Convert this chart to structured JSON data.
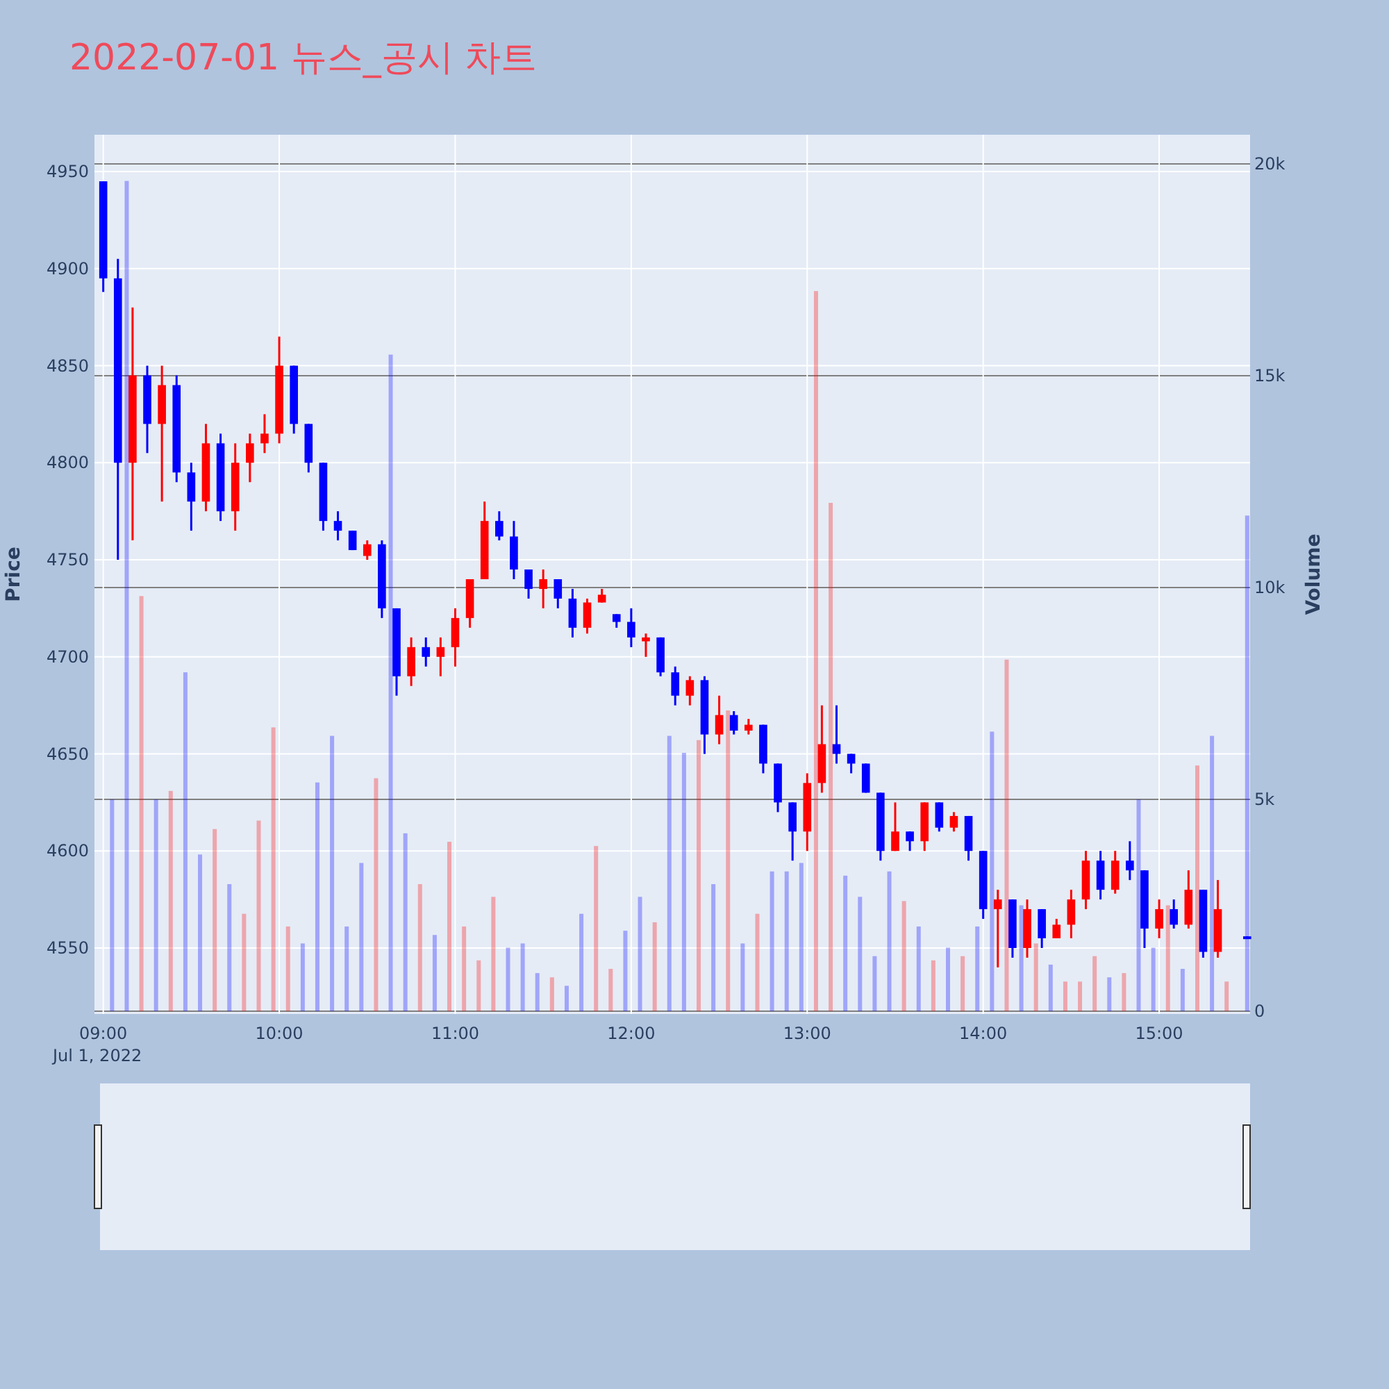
{
  "chart_data": {
    "type": "candlestick",
    "title": "2022-07-01 뉴스_공시 차트",
    "ylabel": "Price",
    "y2label": "Volume",
    "x": [
      "2022-07-01T09:00",
      "2022-07-01T09:05",
      "2022-07-01T09:10",
      "2022-07-01T09:15",
      "2022-07-01T09:20",
      "2022-07-01T09:25",
      "2022-07-01T09:30",
      "2022-07-01T09:35",
      "2022-07-01T09:40",
      "2022-07-01T09:45",
      "2022-07-01T09:50",
      "2022-07-01T09:55",
      "2022-07-01T10:00",
      "2022-07-01T10:05",
      "2022-07-01T10:10",
      "2022-07-01T10:15",
      "2022-07-01T10:20",
      "2022-07-01T10:25",
      "2022-07-01T10:30",
      "2022-07-01T10:35",
      "2022-07-01T10:40",
      "2022-07-01T10:45",
      "2022-07-01T10:50",
      "2022-07-01T10:55",
      "2022-07-01T11:00",
      "2022-07-01T11:05",
      "2022-07-01T11:10",
      "2022-07-01T11:15",
      "2022-07-01T11:20",
      "2022-07-01T11:25",
      "2022-07-01T11:30",
      "2022-07-01T11:35",
      "2022-07-01T11:40",
      "2022-07-01T11:45",
      "2022-07-01T11:50",
      "2022-07-01T11:55",
      "2022-07-01T12:00",
      "2022-07-01T12:05",
      "2022-07-01T12:10",
      "2022-07-01T12:15",
      "2022-07-01T12:20",
      "2022-07-01T12:25",
      "2022-07-01T12:30",
      "2022-07-01T12:35",
      "2022-07-01T12:40",
      "2022-07-01T12:45",
      "2022-07-01T12:50",
      "2022-07-01T12:55",
      "2022-07-01T13:00",
      "2022-07-01T13:05",
      "2022-07-01T13:10",
      "2022-07-01T13:15",
      "2022-07-01T13:20",
      "2022-07-01T13:25",
      "2022-07-01T13:30",
      "2022-07-01T13:35",
      "2022-07-01T13:40",
      "2022-07-01T13:45",
      "2022-07-01T13:50",
      "2022-07-01T13:55",
      "2022-07-01T14:00",
      "2022-07-01T14:05",
      "2022-07-01T14:10",
      "2022-07-01T14:15",
      "2022-07-01T14:20",
      "2022-07-01T14:25",
      "2022-07-01T14:30",
      "2022-07-01T14:35",
      "2022-07-01T14:40",
      "2022-07-01T14:45",
      "2022-07-01T14:50",
      "2022-07-01T14:55",
      "2022-07-01T15:00",
      "2022-07-01T15:05",
      "2022-07-01T15:10",
      "2022-07-01T15:15",
      "2022-07-01T15:20",
      "2022-07-01T15:30"
    ],
    "series": [
      {
        "colors": [
          "#0000ff",
          "#0000ff",
          "#ff0000",
          "#0000ff",
          "#ff0000",
          "#0000ff",
          "#0000ff",
          "#ff0000",
          "#0000ff",
          "#ff0000",
          "#ff0000",
          "#ff0000",
          "#ff0000",
          "#0000ff",
          "#0000ff",
          "#0000ff",
          "#0000ff",
          "#0000ff",
          "#ff0000",
          "#0000ff",
          "#0000ff",
          "#ff0000",
          "#0000ff",
          "#ff0000",
          "#ff0000",
          "#ff0000",
          "#ff0000",
          "#0000ff",
          "#0000ff",
          "#0000ff",
          "#ff0000",
          "#0000ff",
          "#0000ff",
          "#ff0000",
          "#ff0000",
          "#0000ff",
          "#0000ff",
          "#ff0000",
          "#0000ff",
          "#0000ff",
          "#ff0000",
          "#0000ff",
          "#ff0000",
          "#0000ff",
          "#ff0000",
          "#0000ff",
          "#0000ff",
          "#0000ff",
          "#ff0000",
          "#ff0000",
          "#0000ff",
          "#0000ff",
          "#0000ff",
          "#0000ff",
          "#ff0000",
          "#0000ff",
          "#ff0000",
          "#0000ff",
          "#ff0000",
          "#0000ff",
          "#0000ff",
          "#ff0000",
          "#0000ff",
          "#ff0000",
          "#0000ff",
          "#ff0000",
          "#ff0000",
          "#ff0000",
          "#0000ff",
          "#ff0000",
          "#0000ff",
          "#0000ff",
          "#ff0000",
          "#0000ff",
          "#ff0000",
          "#0000ff",
          "#ff0000",
          "#0000ff"
        ],
        "ohlc": [
          [
            4945,
            4945,
            4888,
            4895
          ],
          [
            4895,
            4905,
            4750,
            4800
          ],
          [
            4800,
            4880,
            4760,
            4845
          ],
          [
            4845,
            4850,
            4805,
            4820
          ],
          [
            4820,
            4850,
            4780,
            4840
          ],
          [
            4840,
            4845,
            4790,
            4795
          ],
          [
            4795,
            4800,
            4765,
            4780
          ],
          [
            4780,
            4820,
            4775,
            4810
          ],
          [
            4810,
            4815,
            4770,
            4775
          ],
          [
            4775,
            4810,
            4765,
            4800
          ],
          [
            4800,
            4815,
            4790,
            4810
          ],
          [
            4810,
            4825,
            4805,
            4815
          ],
          [
            4815,
            4865,
            4810,
            4850
          ],
          [
            4850,
            4850,
            4815,
            4820
          ],
          [
            4820,
            4820,
            4795,
            4800
          ],
          [
            4800,
            4800,
            4765,
            4770
          ],
          [
            4770,
            4775,
            4760,
            4765
          ],
          [
            4765,
            4765,
            4755,
            4755
          ],
          [
            4752,
            4760,
            4750,
            4758
          ],
          [
            4758,
            4760,
            4720,
            4725
          ],
          [
            4725,
            4725,
            4680,
            4690
          ],
          [
            4690,
            4710,
            4685,
            4705
          ],
          [
            4705,
            4710,
            4695,
            4700
          ],
          [
            4700,
            4710,
            4690,
            4705
          ],
          [
            4705,
            4725,
            4695,
            4720
          ],
          [
            4720,
            4740,
            4715,
            4740
          ],
          [
            4740,
            4780,
            4740,
            4770
          ],
          [
            4770,
            4775,
            4760,
            4762
          ],
          [
            4762,
            4770,
            4740,
            4745
          ],
          [
            4745,
            4745,
            4730,
            4735
          ],
          [
            4735,
            4745,
            4725,
            4740
          ],
          [
            4740,
            4740,
            4725,
            4730
          ],
          [
            4730,
            4735,
            4710,
            4715
          ],
          [
            4715,
            4730,
            4712,
            4728
          ],
          [
            4728,
            4735,
            4728,
            4732
          ],
          [
            4722,
            4722,
            4715,
            4718
          ],
          [
            4718,
            4725,
            4705,
            4710
          ],
          [
            4708,
            4712,
            4700,
            4710
          ],
          [
            4710,
            4710,
            4690,
            4692
          ],
          [
            4692,
            4695,
            4675,
            4680
          ],
          [
            4680,
            4690,
            4675,
            4688
          ],
          [
            4688,
            4690,
            4650,
            4660
          ],
          [
            4660,
            4680,
            4655,
            4670
          ],
          [
            4670,
            4672,
            4660,
            4662
          ],
          [
            4662,
            4668,
            4660,
            4665
          ],
          [
            4665,
            4665,
            4640,
            4645
          ],
          [
            4645,
            4645,
            4620,
            4625
          ],
          [
            4625,
            4625,
            4595,
            4610
          ],
          [
            4610,
            4640,
            4600,
            4635
          ],
          [
            4635,
            4675,
            4630,
            4655
          ],
          [
            4655,
            4675,
            4645,
            4650
          ],
          [
            4650,
            4650,
            4640,
            4645
          ],
          [
            4645,
            4645,
            4630,
            4630
          ],
          [
            4630,
            4630,
            4595,
            4600
          ],
          [
            4600,
            4625,
            4600,
            4610
          ],
          [
            4610,
            4610,
            4600,
            4605
          ],
          [
            4605,
            4625,
            4600,
            4625
          ],
          [
            4625,
            4625,
            4610,
            4612
          ],
          [
            4612,
            4620,
            4610,
            4618
          ],
          [
            4618,
            4618,
            4595,
            4600
          ],
          [
            4600,
            4600,
            4565,
            4570
          ],
          [
            4570,
            4580,
            4540,
            4575
          ],
          [
            4575,
            4575,
            4545,
            4550
          ],
          [
            4550,
            4575,
            4545,
            4570
          ],
          [
            4570,
            4570,
            4550,
            4555
          ],
          [
            4555,
            4565,
            4555,
            4562
          ],
          [
            4562,
            4580,
            4555,
            4575
          ],
          [
            4575,
            4600,
            4570,
            4595
          ],
          [
            4595,
            4600,
            4575,
            4580
          ],
          [
            4580,
            4600,
            4578,
            4595
          ],
          [
            4595,
            4605,
            4585,
            4590
          ],
          [
            4590,
            4590,
            4550,
            4560
          ],
          [
            4560,
            4575,
            4555,
            4570
          ],
          [
            4570,
            4575,
            4560,
            4562
          ],
          [
            4562,
            4590,
            4560,
            4580
          ],
          [
            4580,
            4580,
            4545,
            4548
          ],
          [
            4548,
            4585,
            4545,
            4570
          ],
          [
            4556,
            4556,
            4555,
            4555
          ]
        ]
      },
      {
        "type": "bar",
        "axis": "y2",
        "x": [
          "2022-07-01T09:03",
          "2022-07-01T09:08",
          "2022-07-01T09:13",
          "2022-07-01T09:18",
          "2022-07-01T09:23",
          "2022-07-01T09:28",
          "2022-07-01T09:33",
          "2022-07-01T09:38",
          "2022-07-01T09:43",
          "2022-07-01T09:48",
          "2022-07-01T09:53",
          "2022-07-01T09:58",
          "2022-07-01T10:03",
          "2022-07-01T10:08",
          "2022-07-01T10:13",
          "2022-07-01T10:18",
          "2022-07-01T10:23",
          "2022-07-01T10:28",
          "2022-07-01T10:33",
          "2022-07-01T10:38",
          "2022-07-01T10:43",
          "2022-07-01T10:48",
          "2022-07-01T10:53",
          "2022-07-01T10:58",
          "2022-07-01T11:03",
          "2022-07-01T11:08",
          "2022-07-01T11:13",
          "2022-07-01T11:18",
          "2022-07-01T11:23",
          "2022-07-01T11:28",
          "2022-07-01T11:33",
          "2022-07-01T11:38",
          "2022-07-01T11:43",
          "2022-07-01T11:48",
          "2022-07-01T11:53",
          "2022-07-01T11:58",
          "2022-07-01T12:03",
          "2022-07-01T12:08",
          "2022-07-01T12:13",
          "2022-07-01T12:18",
          "2022-07-01T12:23",
          "2022-07-01T12:28",
          "2022-07-01T12:33",
          "2022-07-01T12:38",
          "2022-07-01T12:43",
          "2022-07-01T12:48",
          "2022-07-01T12:53",
          "2022-07-01T12:58",
          "2022-07-01T13:03",
          "2022-07-01T13:08",
          "2022-07-01T13:13",
          "2022-07-01T13:18",
          "2022-07-01T13:23",
          "2022-07-01T13:28",
          "2022-07-01T13:33",
          "2022-07-01T13:38",
          "2022-07-01T13:43",
          "2022-07-01T13:48",
          "2022-07-01T13:53",
          "2022-07-01T13:58",
          "2022-07-01T14:03",
          "2022-07-01T14:08",
          "2022-07-01T14:13",
          "2022-07-01T14:18",
          "2022-07-01T14:23",
          "2022-07-01T14:28",
          "2022-07-01T14:33",
          "2022-07-01T14:38",
          "2022-07-01T14:43",
          "2022-07-01T14:48",
          "2022-07-01T14:53",
          "2022-07-01T14:58",
          "2022-07-01T15:03",
          "2022-07-01T15:08",
          "2022-07-01T15:13",
          "2022-07-01T15:18",
          "2022-07-01T15:23",
          "2022-07-01T15:30"
        ],
        "colors": [
          "#0000ff",
          "#0000ff",
          "#ff0000",
          "#0000ff",
          "#ff0000",
          "#0000ff",
          "#0000ff",
          "#ff0000",
          "#0000ff",
          "#ff0000",
          "#ff0000",
          "#ff0000",
          "#ff0000",
          "#0000ff",
          "#0000ff",
          "#0000ff",
          "#0000ff",
          "#0000ff",
          "#ff0000",
          "#0000ff",
          "#0000ff",
          "#ff0000",
          "#0000ff",
          "#ff0000",
          "#ff0000",
          "#ff0000",
          "#ff0000",
          "#0000ff",
          "#0000ff",
          "#0000ff",
          "#ff0000",
          "#0000ff",
          "#0000ff",
          "#ff0000",
          "#ff0000",
          "#0000ff",
          "#0000ff",
          "#ff0000",
          "#0000ff",
          "#0000ff",
          "#ff0000",
          "#0000ff",
          "#ff0000",
          "#0000ff",
          "#ff0000",
          "#0000ff",
          "#0000ff",
          "#0000ff",
          "#ff0000",
          "#ff0000",
          "#0000ff",
          "#0000ff",
          "#0000ff",
          "#0000ff",
          "#ff0000",
          "#0000ff",
          "#ff0000",
          "#0000ff",
          "#ff0000",
          "#0000ff",
          "#0000ff",
          "#ff0000",
          "#0000ff",
          "#ff0000",
          "#0000ff",
          "#ff0000",
          "#ff0000",
          "#ff0000",
          "#0000ff",
          "#ff0000",
          "#0000ff",
          "#0000ff",
          "#ff0000",
          "#0000ff",
          "#ff0000",
          "#0000ff",
          "#ff0000",
          "#0000ff"
        ],
        "values": [
          5000,
          19600,
          9800,
          5000,
          5200,
          8000,
          3700,
          4300,
          3000,
          2300,
          4500,
          6700,
          2000,
          1600,
          5400,
          6500,
          2000,
          3500,
          5500,
          15500,
          4200,
          3000,
          1800,
          4000,
          2000,
          1200,
          2700,
          1500,
          1600,
          900,
          800,
          600,
          2300,
          3900,
          1000,
          1900,
          2700,
          2100,
          6500,
          6100,
          6400,
          3000,
          7100,
          1600,
          2300,
          3300,
          3300,
          3500,
          17000,
          12000,
          3200,
          2700,
          1300,
          3300,
          2600,
          2000,
          1200,
          1500,
          1300,
          2000,
          6600,
          8300,
          2500,
          1600,
          1100,
          700,
          700,
          1300,
          800,
          900,
          5000,
          1500,
          2500,
          1000,
          5800,
          6500,
          700,
          11700
        ]
      }
    ],
    "xlim": [
      "2022-07-01T08:57",
      "2022-07-01T15:31"
    ],
    "xticks": [
      {
        "value": "2022-07-01T09:00",
        "label": "09:00\nJul 1, 2022"
      },
      {
        "value": "2022-07-01T10:00",
        "label": "10:00"
      },
      {
        "value": "2022-07-01T11:00",
        "label": "11:00"
      },
      {
        "value": "2022-07-01T12:00",
        "label": "12:00"
      },
      {
        "value": "2022-07-01T13:00",
        "label": "13:00"
      },
      {
        "value": "2022-07-01T14:00",
        "label": "14:00"
      },
      {
        "value": "2022-07-01T15:00",
        "label": "15:00"
      }
    ],
    "ylim": [
      4516,
      4969
    ],
    "yticks": [
      4550,
      4600,
      4650,
      4700,
      4750,
      4800,
      4850,
      4900,
      4950
    ],
    "y2lim": [
      -65,
      20690
    ],
    "y2ticks": [
      0,
      {
        "value": 5000,
        "label": "5k"
      },
      {
        "value": 10000,
        "label": "10k"
      },
      {
        "value": 15000,
        "label": "15k"
      },
      {
        "value": 20000,
        "label": "20k"
      }
    ],
    "grid": true
  }
}
